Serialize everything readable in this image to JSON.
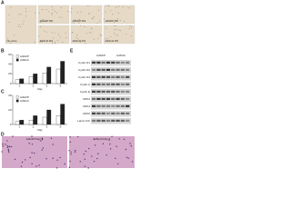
{
  "panels": {
    "a": "A",
    "b": "B",
    "c": "C",
    "d": "D",
    "e": "E"
  },
  "micrographs": [
    "No virus",
    "AdGFP D2",
    "AdGFP D3",
    "AdGFP D5",
    "AdSmb D2",
    "AdSmb D3",
    "AdSmb D5"
  ],
  "blot": {
    "groups": [
      "AdGFP",
      "AdSmb"
    ],
    "rows": [
      "Cyclin D1",
      "Cyclin D2",
      "Cyclin D3",
      "Cyclin A",
      "Cyclin E",
      "CDK2",
      "CDK4",
      "CDK6",
      "Lamin A/C"
    ]
  },
  "histology": [
    "AdGFP Day 3",
    "AdSmb Day 3"
  ],
  "chart_data": [
    {
      "type": "bar",
      "x_label": "Day",
      "categories": [
        "1",
        "2",
        "3",
        "5"
      ],
      "series": [
        {
          "name": "AdGFP",
          "color": "#ffffff",
          "values": [
            8,
            14,
            22,
            30
          ]
        },
        {
          "name": "AdSmb",
          "color": "#222222",
          "values": [
            10,
            20,
            34,
            46
          ]
        }
      ],
      "ylim": [
        0,
        60
      ],
      "yticks": [
        0,
        20,
        40,
        60
      ]
    },
    {
      "type": "bar",
      "x_label": "Day",
      "categories": [
        "1",
        "2",
        "3",
        "5"
      ],
      "series": [
        {
          "name": "AdGFP",
          "color": "#ffffff",
          "values": [
            4,
            6,
            10,
            12
          ]
        },
        {
          "name": "AdSmb",
          "color": "#222222",
          "values": [
            6,
            12,
            20,
            28
          ]
        }
      ],
      "ylim": [
        0,
        40
      ],
      "yticks": [
        0,
        20,
        40
      ]
    }
  ]
}
